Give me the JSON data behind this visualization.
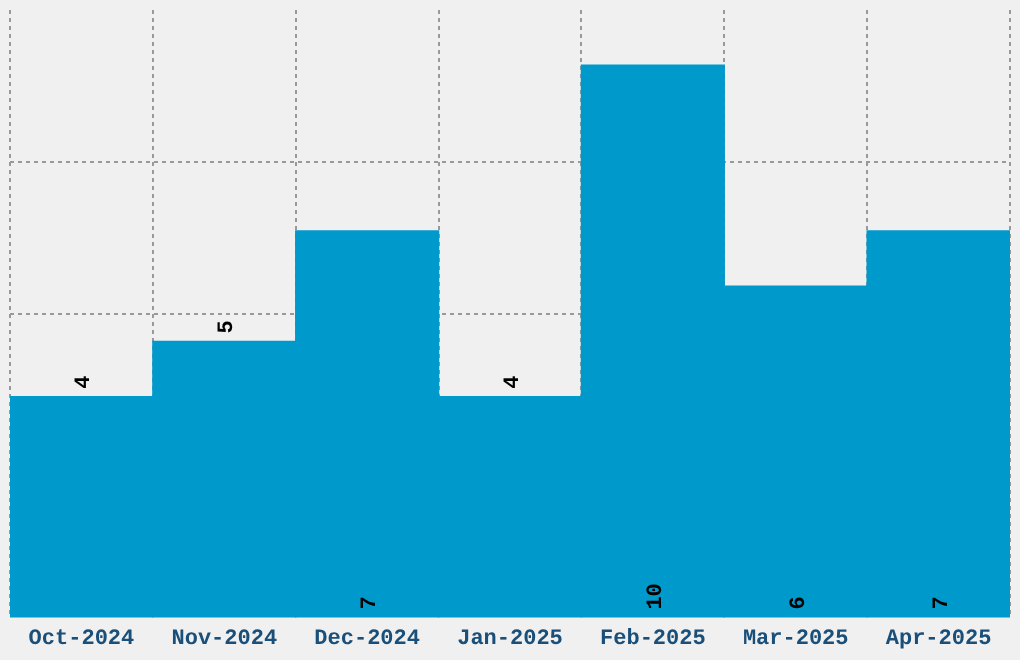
{
  "chart_data": {
    "type": "bar",
    "categories": [
      "Oct-2024",
      "Nov-2024",
      "Dec-2024",
      "Jan-2025",
      "Feb-2025",
      "Mar-2025",
      "Apr-2025"
    ],
    "values": [
      4,
      5,
      7,
      4,
      10,
      6,
      7
    ],
    "color": "#0099cc",
    "data_labels": true,
    "ylim": [
      0,
      11
    ],
    "yticks": [
      {
        "value": 5.5,
        "label": null
      },
      {
        "value": 8.25,
        "label": null
      }
    ],
    "grid": true,
    "legend": false,
    "tick_labels": "x"
  }
}
